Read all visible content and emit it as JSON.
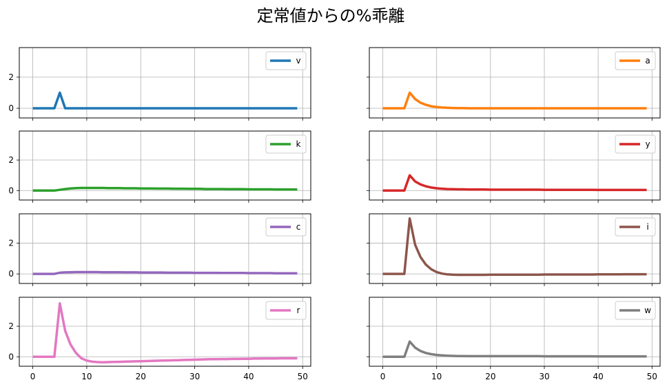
{
  "chart_data": {
    "type": "line",
    "title": "定常値からの%乖離",
    "x": [
      0,
      1,
      2,
      3,
      4,
      5,
      6,
      7,
      8,
      9,
      10,
      11,
      12,
      13,
      14,
      15,
      16,
      17,
      18,
      19,
      20,
      21,
      22,
      23,
      24,
      25,
      26,
      27,
      28,
      29,
      30,
      31,
      32,
      33,
      34,
      35,
      36,
      37,
      38,
      39,
      40,
      41,
      42,
      43,
      44,
      45,
      46,
      47,
      48,
      49
    ],
    "xlim": [
      -2.5,
      51.5
    ],
    "ylim": [
      -0.62,
      3.9
    ],
    "xticks": [
      0,
      10,
      20,
      30,
      40,
      50
    ],
    "yticks": [
      0,
      2
    ],
    "grid": true,
    "legend_placement": "upper right",
    "sharex": true,
    "sharey": true,
    "layout": "4x2",
    "series": [
      {
        "name": "v",
        "color": "#1f77b4",
        "values": [
          0,
          0,
          0,
          0,
          0,
          1,
          0,
          0,
          0,
          0,
          0,
          0,
          0,
          0,
          0,
          0,
          0,
          0,
          0,
          0,
          0,
          0,
          0,
          0,
          0,
          0,
          0,
          0,
          0,
          0,
          0,
          0,
          0,
          0,
          0,
          0,
          0,
          0,
          0,
          0,
          0,
          0,
          0,
          0,
          0,
          0,
          0,
          0,
          0,
          0
        ]
      },
      {
        "name": "a",
        "color": "#ff7f0e",
        "values": [
          0,
          0,
          0,
          0,
          0,
          1,
          0.6,
          0.36,
          0.22,
          0.13,
          0.08,
          0.05,
          0.03,
          0.02,
          0.01,
          0.01,
          0,
          0,
          0,
          0,
          0,
          0,
          0,
          0,
          0,
          0,
          0,
          0,
          0,
          0,
          0,
          0,
          0,
          0,
          0,
          0,
          0,
          0,
          0,
          0,
          0,
          0,
          0,
          0,
          0,
          0,
          0,
          0,
          0,
          0
        ]
      },
      {
        "name": "k",
        "color": "#2ca02c",
        "values": [
          0,
          0,
          0,
          0,
          0,
          0.05,
          0.1,
          0.14,
          0.16,
          0.17,
          0.17,
          0.17,
          0.17,
          0.17,
          0.16,
          0.16,
          0.16,
          0.15,
          0.15,
          0.15,
          0.14,
          0.14,
          0.14,
          0.13,
          0.13,
          0.13,
          0.12,
          0.12,
          0.12,
          0.11,
          0.11,
          0.11,
          0.1,
          0.1,
          0.1,
          0.1,
          0.09,
          0.09,
          0.09,
          0.09,
          0.08,
          0.08,
          0.08,
          0.08,
          0.08,
          0.07,
          0.07,
          0.07,
          0.07,
          0.07
        ]
      },
      {
        "name": "y",
        "color": "#d62728",
        "values": [
          0,
          0,
          0,
          0,
          0,
          1,
          0.6,
          0.4,
          0.28,
          0.2,
          0.15,
          0.12,
          0.1,
          0.09,
          0.08,
          0.08,
          0.07,
          0.07,
          0.07,
          0.07,
          0.06,
          0.06,
          0.06,
          0.06,
          0.06,
          0.06,
          0.06,
          0.06,
          0.06,
          0.06,
          0.05,
          0.05,
          0.05,
          0.05,
          0.05,
          0.05,
          0.05,
          0.05,
          0.05,
          0.05,
          0.04,
          0.04,
          0.04,
          0.04,
          0.04,
          0.04,
          0.04,
          0.04,
          0.04,
          0.04
        ]
      },
      {
        "name": "c",
        "color": "#9467bd",
        "values": [
          0,
          0,
          0,
          0,
          0,
          0.08,
          0.1,
          0.11,
          0.12,
          0.12,
          0.12,
          0.12,
          0.12,
          0.11,
          0.11,
          0.11,
          0.11,
          0.1,
          0.1,
          0.1,
          0.09,
          0.09,
          0.09,
          0.09,
          0.09,
          0.08,
          0.08,
          0.08,
          0.08,
          0.08,
          0.07,
          0.07,
          0.07,
          0.07,
          0.07,
          0.06,
          0.06,
          0.06,
          0.06,
          0.06,
          0.05,
          0.05,
          0.05,
          0.05,
          0.05,
          0.04,
          0.04,
          0.04,
          0.04,
          0.04
        ]
      },
      {
        "name": "i",
        "color": "#8c564b",
        "values": [
          0,
          0,
          0,
          0,
          0,
          3.6,
          1.9,
          1.1,
          0.6,
          0.3,
          0.12,
          0.02,
          -0.03,
          -0.05,
          -0.06,
          -0.06,
          -0.06,
          -0.06,
          -0.06,
          -0.06,
          -0.05,
          -0.05,
          -0.05,
          -0.05,
          -0.05,
          -0.05,
          -0.05,
          -0.05,
          -0.05,
          -0.05,
          -0.04,
          -0.04,
          -0.04,
          -0.04,
          -0.04,
          -0.04,
          -0.04,
          -0.04,
          -0.04,
          -0.04,
          -0.03,
          -0.03,
          -0.03,
          -0.03,
          -0.03,
          -0.02,
          -0.02,
          -0.02,
          -0.02,
          -0.02
        ]
      },
      {
        "name": "r",
        "color": "#e377c2",
        "values": [
          0,
          0,
          0,
          0,
          0,
          3.5,
          1.7,
          0.8,
          0.25,
          -0.1,
          -0.25,
          -0.32,
          -0.35,
          -0.36,
          -0.35,
          -0.34,
          -0.33,
          -0.32,
          -0.31,
          -0.3,
          -0.29,
          -0.28,
          -0.27,
          -0.26,
          -0.25,
          -0.24,
          -0.23,
          -0.22,
          -0.21,
          -0.2,
          -0.19,
          -0.18,
          -0.17,
          -0.16,
          -0.16,
          -0.15,
          -0.15,
          -0.14,
          -0.14,
          -0.13,
          -0.13,
          -0.12,
          -0.12,
          -0.11,
          -0.11,
          -0.11,
          -0.1,
          -0.1,
          -0.1,
          -0.1
        ]
      },
      {
        "name": "w",
        "color": "#7f7f7f",
        "values": [
          0,
          0,
          0,
          0,
          0,
          1,
          0.6,
          0.38,
          0.25,
          0.17,
          0.12,
          0.09,
          0.07,
          0.06,
          0.05,
          0.05,
          0.04,
          0.04,
          0.04,
          0.04,
          0.04,
          0.04,
          0.04,
          0.04,
          0.04,
          0.04,
          0.04,
          0.04,
          0.04,
          0.04,
          0.03,
          0.03,
          0.03,
          0.03,
          0.03,
          0.03,
          0.03,
          0.03,
          0.03,
          0.03,
          0.02,
          0.02,
          0.02,
          0.02,
          0.02,
          0.02,
          0.02,
          0.02,
          0.02,
          0.02
        ]
      }
    ]
  }
}
